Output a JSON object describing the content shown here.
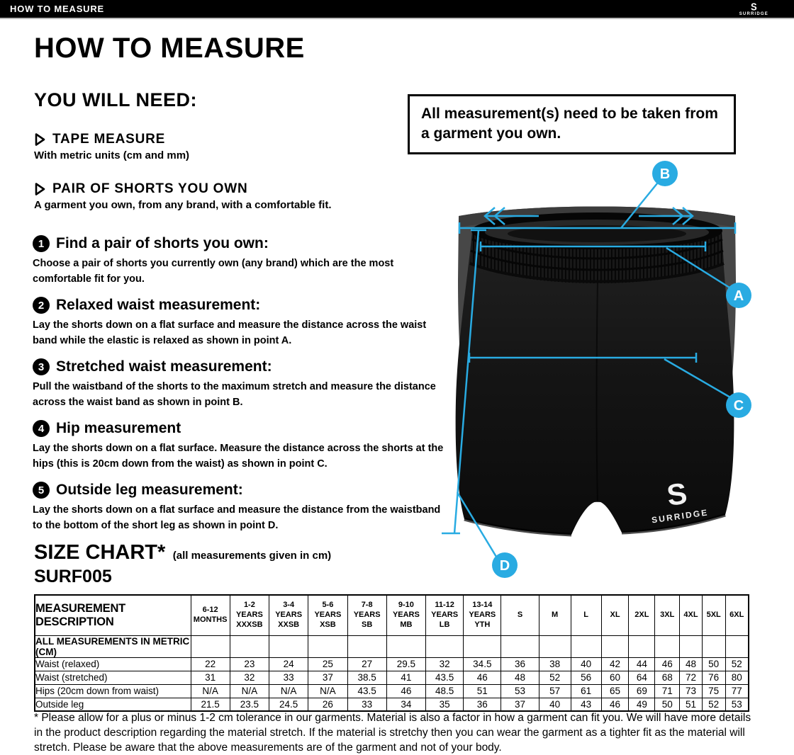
{
  "topbar": {
    "title": "HOW TO MEASURE",
    "logo_letter": "S",
    "logo_word": "SURRIDGE"
  },
  "page": {
    "title": "HOW TO MEASURE"
  },
  "you_will_need": {
    "heading": "YOU WILL NEED:",
    "items": [
      {
        "title": "TAPE MEASURE",
        "description": "With metric units (cm and mm)"
      },
      {
        "title": "PAIR OF SHORTS YOU OWN",
        "description": "A garment you own, from any brand, with a comfortable fit."
      }
    ]
  },
  "note": "All measurement(s) need to be taken from a garment you own.",
  "steps": [
    {
      "number": "1",
      "title": "Find a pair of shorts you own:",
      "body": "Choose a pair of shorts you currently own (any brand) which are the most comfortable fit for you."
    },
    {
      "number": "2",
      "title": "Relaxed waist measurement:",
      "body": "Lay the shorts down on a flat surface and measure the distance across the waist band while the elastic is relaxed as shown in point A."
    },
    {
      "number": "3",
      "title": "Stretched waist measurement:",
      "body": "Pull the waistband of the shorts to the maximum stretch and measure the distance across the waist band as shown in point B."
    },
    {
      "number": "4",
      "title": "Hip measurement",
      "body": "Lay the shorts down on a flat surface. Measure the distance across the shorts at the hips (this is 20cm down from the waist)  as shown in point C."
    },
    {
      "number": "5",
      "title": "Outside leg measurement:",
      "body": "Lay the shorts down on a flat surface and measure the distance from the waistband to the bottom of the short leg as shown in point D."
    }
  ],
  "diagram": {
    "labels": [
      "A",
      "B",
      "C",
      "D"
    ],
    "accent_color": "#29ABE2",
    "garment_logo_letter": "S",
    "garment_logo": "SURRIDGE"
  },
  "size_chart": {
    "heading": "SIZE CHART*",
    "subheading": "(all measurements given in cm)",
    "product_code": "SURF005",
    "description_header": "MEASUREMENT DESCRIPTION",
    "metric_row_label": "ALL MEASUREMENTS IN METRIC (CM)",
    "columns": [
      [
        "6-12",
        "MONTHS"
      ],
      [
        "1-2",
        "YEARS",
        "XXXSB"
      ],
      [
        "3-4",
        "YEARS",
        "XXSB"
      ],
      [
        "5-6",
        "YEARS",
        "XSB"
      ],
      [
        "7-8",
        "YEARS",
        "SB"
      ],
      [
        "9-10",
        "YEARS",
        "MB"
      ],
      [
        "11-12",
        "YEARS",
        "LB"
      ],
      [
        "13-14",
        "YEARS",
        "YTH"
      ],
      [
        "S"
      ],
      [
        "M"
      ],
      [
        "L"
      ],
      [
        "XL"
      ],
      [
        "2XL"
      ],
      [
        "3XL"
      ],
      [
        "4XL"
      ],
      [
        "5XL"
      ],
      [
        "6XL"
      ]
    ],
    "rows": [
      {
        "label": "Waist (relaxed)",
        "values": [
          "22",
          "23",
          "24",
          "25",
          "27",
          "29.5",
          "32",
          "34.5",
          "36",
          "38",
          "40",
          "42",
          "44",
          "46",
          "48",
          "50",
          "52"
        ]
      },
      {
        "label": "Waist (stretched)",
        "values": [
          "31",
          "32",
          "33",
          "37",
          "38.5",
          "41",
          "43.5",
          "46",
          "48",
          "52",
          "56",
          "60",
          "64",
          "68",
          "72",
          "76",
          "80"
        ]
      },
      {
        "label": "Hips (20cm down from waist)",
        "values": [
          "N/A",
          "N/A",
          "N/A",
          "N/A",
          "43.5",
          "46",
          "48.5",
          "51",
          "53",
          "57",
          "61",
          "65",
          "69",
          "71",
          "73",
          "75",
          "77"
        ]
      },
      {
        "label": "Outside leg",
        "values": [
          "21.5",
          "23.5",
          "24.5",
          "26",
          "33",
          "34",
          "35",
          "36",
          "37",
          "40",
          "43",
          "46",
          "49",
          "50",
          "51",
          "52",
          "53"
        ]
      }
    ]
  },
  "footnote": "* Please allow for a plus or minus 1-2 cm tolerance in our garments. Material is also a factor in how a garment can fit you. We will have more details in the product description regarding the material stretch.  If the material is stretchy then you can wear the garment as a tighter fit as the material will stretch.  Please be aware that the above measurements are of the garment and not of your body."
}
